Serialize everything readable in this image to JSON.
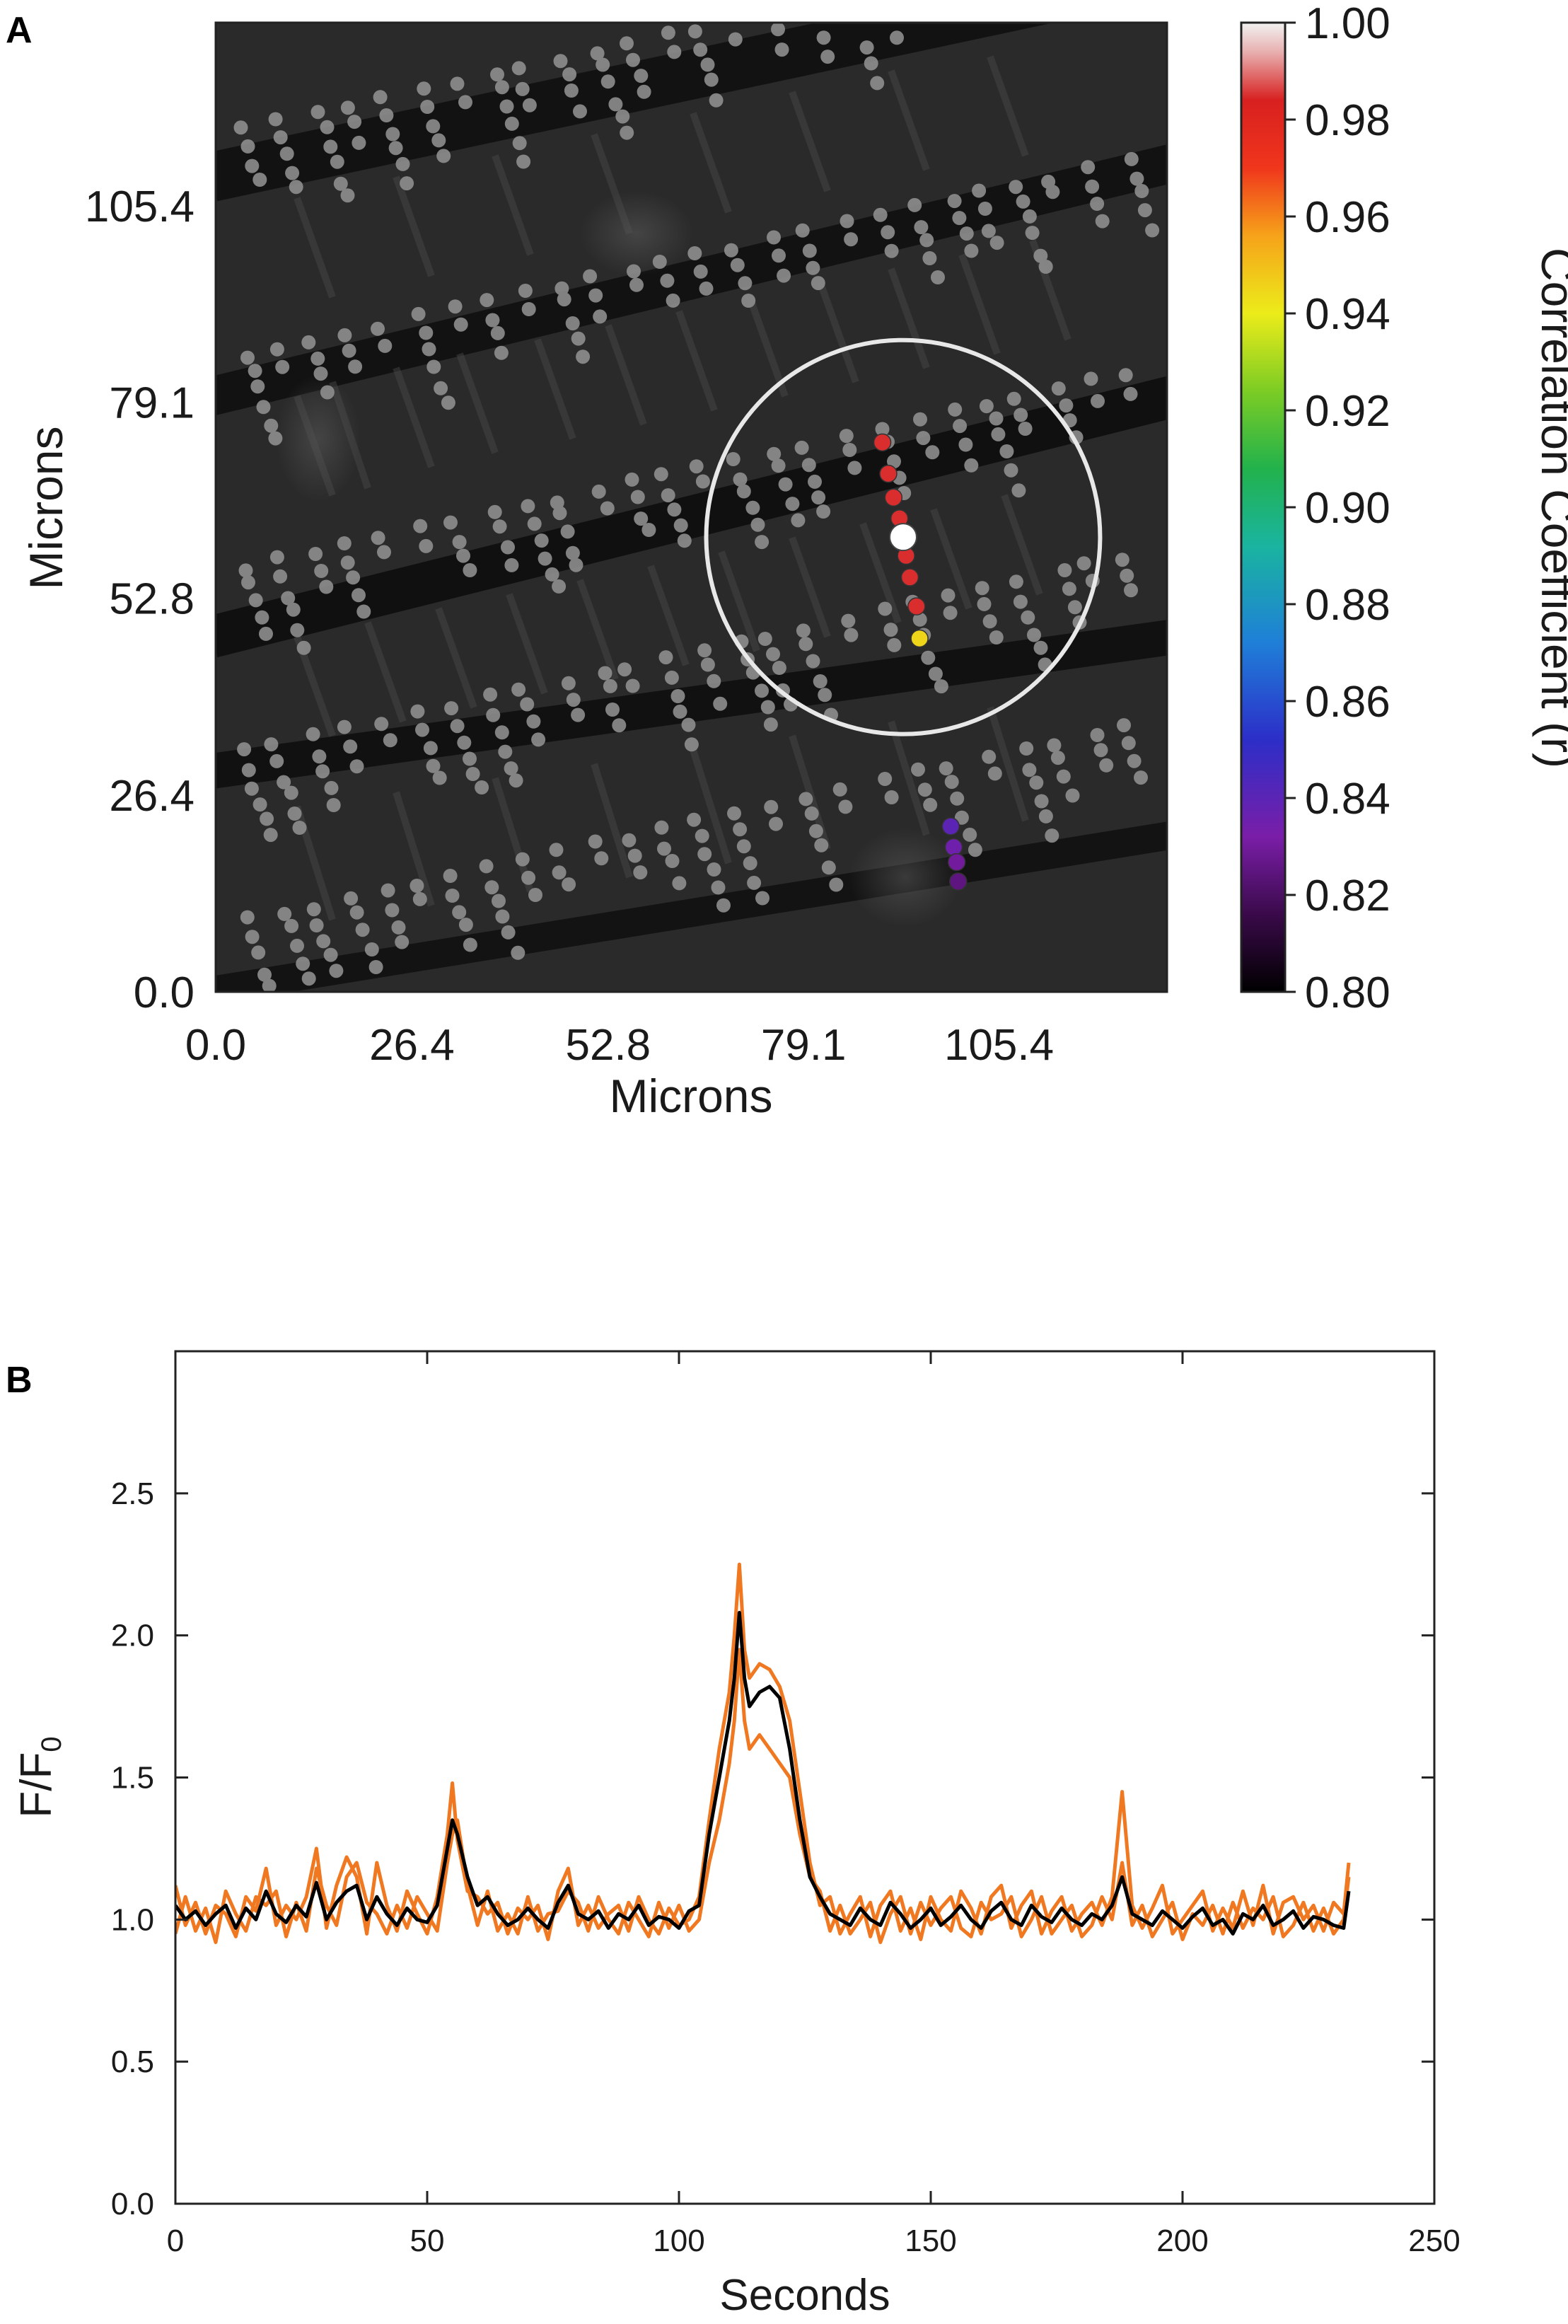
{
  "chart_data": [
    {
      "panel": "A",
      "type": "scatter",
      "xlabel": "Microns",
      "ylabel": "Microns",
      "xticks": [
        "0.0",
        "26.4",
        "52.8",
        "79.1",
        "105.4"
      ],
      "yticks": [
        "0.0",
        "26.4",
        "52.8",
        "79.1",
        "105.4"
      ],
      "xlim": [
        0,
        128
      ],
      "ylim": [
        0,
        130
      ],
      "background": "grayscale fluorescence micrograph with grey ROI dots",
      "colorbar": {
        "label": "Correlation Coefficient (r)",
        "ticks": [
          "1.00",
          "0.98",
          "0.96",
          "0.94",
          "0.92",
          "0.90",
          "0.88",
          "0.86",
          "0.84",
          "0.82",
          "0.80"
        ],
        "range": [
          0.8,
          1.0
        ],
        "colormap": "spectral (black-purple-blue-green-yellow-orange-red-white)"
      },
      "reference_roi": {
        "x": 92.5,
        "y": 61.0,
        "color": "#ffffff"
      },
      "search_circle": {
        "center_x": 92.5,
        "center_y": 61.0,
        "radius": 26.5,
        "color": "#e8e8e8"
      },
      "points": [
        {
          "x": 89.7,
          "y": 73.7,
          "r": 0.985
        },
        {
          "x": 90.5,
          "y": 69.5,
          "r": 0.985
        },
        {
          "x": 91.2,
          "y": 66.3,
          "r": 0.985
        },
        {
          "x": 92.0,
          "y": 63.5,
          "r": 0.985
        },
        {
          "x": 92.9,
          "y": 58.5,
          "r": 0.985
        },
        {
          "x": 93.4,
          "y": 55.6,
          "r": 0.985
        },
        {
          "x": 94.3,
          "y": 51.7,
          "r": 0.985
        },
        {
          "x": 94.7,
          "y": 47.4,
          "r": 0.945
        },
        {
          "x": 98.9,
          "y": 22.2,
          "r": 0.84
        },
        {
          "x": 99.3,
          "y": 19.4,
          "r": 0.835
        },
        {
          "x": 99.7,
          "y": 17.4,
          "r": 0.83
        },
        {
          "x": 99.9,
          "y": 14.8,
          "r": 0.825
        }
      ]
    },
    {
      "panel": "B",
      "type": "line",
      "xlabel": "Seconds",
      "ylabel": "F/F0",
      "xlim": [
        0,
        250
      ],
      "ylim": [
        0,
        3.0
      ],
      "xticks": [
        "0",
        "50",
        "100",
        "150",
        "200",
        "250"
      ],
      "yticks": [
        "0.0",
        "0.5",
        "1.0",
        "1.5",
        "2.0",
        "2.5"
      ],
      "series": [
        {
          "color": "#000000",
          "x": [
            0,
            2,
            4,
            6,
            8,
            10,
            12,
            14,
            16,
            18,
            20,
            22,
            24,
            26,
            28,
            30,
            32,
            34,
            36,
            38,
            40,
            42,
            44,
            46,
            48,
            50,
            52,
            54,
            55,
            56,
            58,
            60,
            62,
            64,
            66,
            68,
            70,
            72,
            74,
            76,
            78,
            80,
            82,
            84,
            86,
            88,
            90,
            92,
            94,
            96,
            98,
            100,
            102,
            104,
            106,
            108,
            110,
            111,
            112,
            113,
            114,
            116,
            118,
            120,
            122,
            124,
            126,
            128,
            130,
            132,
            134,
            136,
            138,
            140,
            142,
            144,
            146,
            148,
            150,
            152,
            154,
            156,
            158,
            160,
            162,
            164,
            166,
            168,
            170,
            172,
            174,
            176,
            178,
            180,
            182,
            184,
            186,
            188,
            190,
            192,
            194,
            196,
            198,
            200,
            202,
            204,
            206,
            208,
            210,
            212,
            214,
            216,
            218,
            220,
            222,
            224,
            226,
            228,
            230,
            232,
            233
          ],
          "y": [
            1.05,
            1.0,
            1.03,
            0.98,
            1.02,
            1.05,
            0.97,
            1.04,
            1.0,
            1.1,
            1.02,
            0.99,
            1.05,
            1.01,
            1.13,
            1.0,
            1.06,
            1.1,
            1.12,
            1.0,
            1.08,
            1.02,
            0.98,
            1.04,
            1.0,
            0.99,
            1.05,
            1.25,
            1.35,
            1.3,
            1.15,
            1.05,
            1.08,
            1.02,
            0.98,
            1.0,
            1.04,
            1.0,
            0.97,
            1.06,
            1.12,
            1.02,
            1.0,
            1.03,
            0.97,
            1.02,
            1.0,
            1.05,
            0.98,
            1.01,
            1.0,
            0.97,
            1.03,
            1.05,
            1.3,
            1.5,
            1.7,
            1.85,
            2.08,
            1.85,
            1.75,
            1.8,
            1.82,
            1.78,
            1.6,
            1.35,
            1.15,
            1.08,
            1.02,
            1.0,
            0.98,
            1.04,
            1.0,
            0.98,
            1.06,
            1.02,
            0.97,
            1.0,
            1.04,
            0.98,
            1.01,
            1.05,
            1.0,
            0.97,
            1.03,
            1.06,
            1.0,
            0.98,
            1.05,
            1.01,
            0.99,
            1.04,
            1.0,
            0.98,
            1.02,
            1.0,
            1.05,
            1.15,
            1.02,
            1.0,
            0.98,
            1.03,
            1.0,
            0.97,
            1.01,
            1.04,
            0.98,
            1.0,
            0.95,
            1.02,
            1.0,
            1.05,
            0.98,
            1.0,
            1.03,
            0.97,
            1.01,
            1.0,
            0.98,
            0.97,
            1.1
          ]
        },
        {
          "color": "#f07820",
          "x": [
            0,
            2,
            4,
            6,
            8,
            10,
            12,
            14,
            16,
            18,
            20,
            22,
            24,
            26,
            28,
            30,
            32,
            34,
            36,
            38,
            40,
            42,
            44,
            46,
            48,
            50,
            52,
            54,
            55,
            56,
            58,
            60,
            62,
            64,
            66,
            68,
            70,
            72,
            74,
            76,
            78,
            80,
            82,
            84,
            86,
            88,
            90,
            92,
            94,
            96,
            98,
            100,
            102,
            104,
            106,
            108,
            110,
            111,
            112,
            113,
            114,
            116,
            118,
            120,
            122,
            124,
            126,
            128,
            130,
            132,
            134,
            136,
            138,
            140,
            142,
            144,
            146,
            148,
            150,
            152,
            154,
            156,
            158,
            160,
            162,
            164,
            166,
            168,
            170,
            172,
            174,
            176,
            178,
            180,
            182,
            184,
            186,
            188,
            190,
            192,
            194,
            196,
            198,
            200,
            202,
            204,
            206,
            208,
            210,
            212,
            214,
            216,
            218,
            220,
            222,
            224,
            226,
            228,
            230,
            232,
            233
          ],
          "y": [
            1.12,
            0.98,
            1.06,
            0.95,
            1.05,
            1.02,
            0.94,
            1.08,
            1.03,
            1.18,
            0.98,
            1.05,
            1.0,
            1.08,
            1.25,
            0.97,
            1.12,
            1.22,
            1.15,
            0.95,
            1.2,
            1.05,
            0.96,
            1.1,
            1.02,
            0.95,
            1.08,
            1.3,
            1.48,
            1.28,
            1.1,
            1.08,
            1.02,
            1.06,
            0.95,
            1.04,
            1.0,
            1.05,
            0.93,
            1.1,
            1.18,
            0.98,
            1.05,
            0.97,
            1.02,
            1.05,
            0.96,
            1.08,
            1.0,
            0.95,
            1.04,
            0.98,
            1.0,
            1.08,
            1.35,
            1.6,
            1.8,
            2.0,
            2.25,
            1.95,
            1.85,
            1.9,
            1.88,
            1.82,
            1.7,
            1.45,
            1.2,
            1.05,
            1.08,
            0.95,
            1.02,
            1.08,
            0.94,
            1.05,
            1.1,
            0.96,
            1.04,
            0.93,
            1.08,
            1.0,
            0.96,
            1.1,
            1.04,
            0.95,
            1.08,
            1.12,
            0.97,
            1.05,
            1.1,
            0.95,
            1.03,
            1.08,
            0.96,
            1.02,
            1.06,
            0.98,
            1.08,
            1.45,
            1.05,
            0.97,
            1.04,
            1.12,
            0.95,
            1.0,
            1.05,
            1.1,
            0.96,
            1.04,
            0.97,
            1.1,
            0.98,
            1.12,
            0.95,
            1.06,
            1.08,
            1.0,
            1.05,
            0.96,
            1.06,
            1.02,
            1.2
          ]
        },
        {
          "color": "#f07820",
          "x": [
            0,
            2,
            4,
            6,
            8,
            10,
            12,
            14,
            16,
            18,
            20,
            22,
            24,
            26,
            28,
            30,
            32,
            34,
            36,
            38,
            40,
            42,
            44,
            46,
            48,
            50,
            52,
            54,
            55,
            56,
            58,
            60,
            62,
            64,
            66,
            68,
            70,
            72,
            74,
            76,
            78,
            80,
            82,
            84,
            86,
            88,
            90,
            92,
            94,
            96,
            98,
            100,
            102,
            104,
            106,
            108,
            110,
            111,
            112,
            113,
            114,
            116,
            118,
            120,
            122,
            124,
            126,
            128,
            130,
            132,
            134,
            136,
            138,
            140,
            142,
            144,
            146,
            148,
            150,
            152,
            154,
            156,
            158,
            160,
            162,
            164,
            166,
            168,
            170,
            172,
            174,
            176,
            178,
            180,
            182,
            184,
            186,
            188,
            190,
            192,
            194,
            196,
            198,
            200,
            202,
            204,
            206,
            208,
            210,
            212,
            214,
            216,
            218,
            220,
            222,
            224,
            226,
            228,
            230,
            232,
            233
          ],
          "y": [
            0.95,
            1.08,
            0.96,
            1.04,
            0.92,
            1.1,
            1.02,
            0.96,
            1.08,
            1.05,
            1.1,
            0.94,
            1.06,
            0.96,
            1.18,
            1.05,
            0.98,
            1.15,
            1.2,
            1.06,
            1.02,
            0.95,
            1.05,
            0.97,
            1.08,
            1.02,
            0.96,
            1.2,
            1.3,
            1.35,
            1.12,
            0.98,
            1.1,
            0.96,
            1.02,
            0.95,
            1.08,
            0.96,
            1.02,
            1.03,
            1.1,
            1.06,
            0.96,
            1.08,
            1.0,
            0.95,
            1.06,
            1.0,
            0.94,
            1.06,
            0.97,
            1.05,
            0.96,
            1.0,
            1.2,
            1.35,
            1.55,
            1.7,
            1.95,
            1.7,
            1.6,
            1.65,
            1.6,
            1.55,
            1.5,
            1.3,
            1.15,
            1.1,
            0.96,
            1.05,
            0.95,
            1.0,
            1.06,
            0.92,
            1.02,
            1.08,
            0.95,
            1.06,
            0.98,
            1.04,
            1.08,
            0.97,
            0.94,
            1.06,
            1.0,
            1.02,
            1.08,
            0.94,
            1.0,
            1.08,
            0.95,
            1.0,
            1.05,
            0.94,
            0.98,
            1.08,
            1.0,
            1.2,
            0.98,
            1.05,
            0.94,
            1.0,
            1.06,
            0.93,
            1.02,
            0.98,
            1.05,
            0.95,
            1.06,
            0.97,
            1.04,
            1.0,
            1.08,
            0.94,
            0.98,
            1.06,
            0.96,
            1.04,
            0.95,
            1.0,
            1.15
          ]
        }
      ]
    }
  ]
}
